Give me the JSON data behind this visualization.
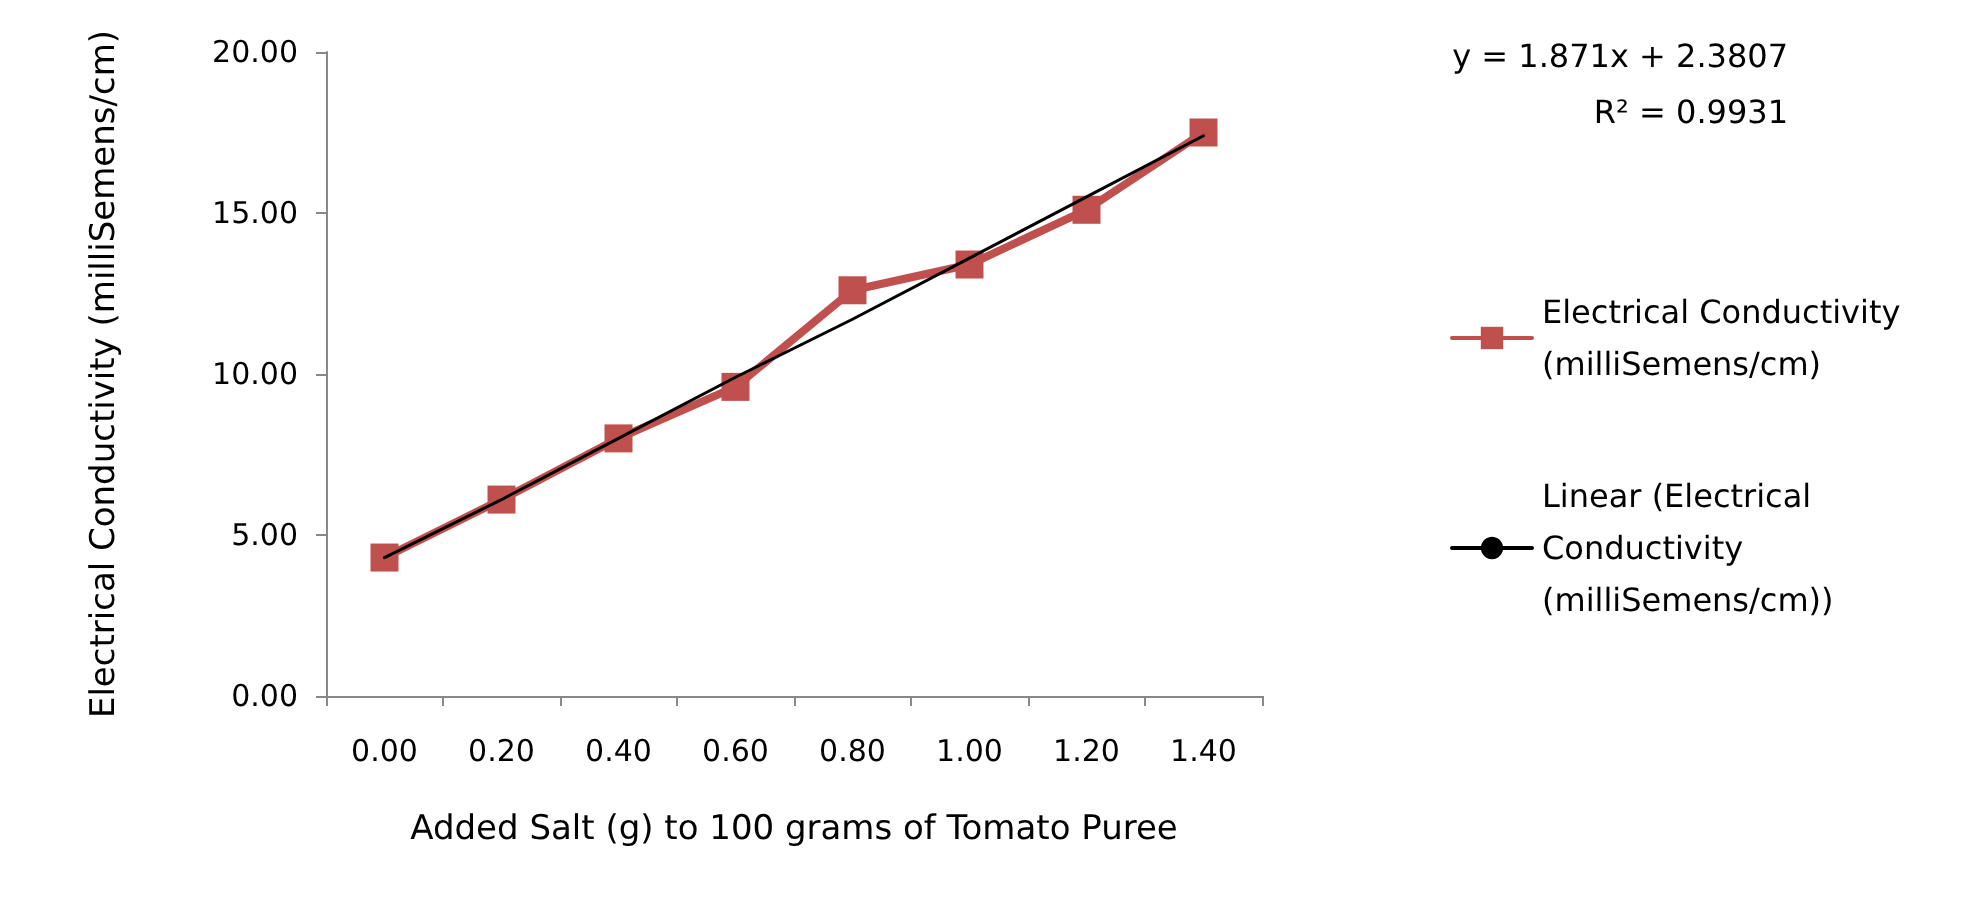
{
  "chart_data": {
    "type": "line",
    "xlabel": "Added Salt (g) to 100 grams of Tomato Puree",
    "ylabel": "Electrical Conductivity (milliSemens/cm)",
    "categories": [
      "0.00",
      "0.20",
      "0.40",
      "0.60",
      "0.80",
      "1.00",
      "1.20",
      "1.40"
    ],
    "series": [
      {
        "name": "Electrical Conductivity (milliSemens/cm)",
        "color": "#c0504d",
        "marker": "square",
        "values": [
          4.3,
          6.1,
          8.0,
          9.6,
          12.6,
          13.4,
          15.1,
          17.5
        ]
      },
      {
        "name": "Linear (Electrical Conductivity (milliSemens/cm))",
        "color": "#000000",
        "marker": "none",
        "values": [
          4.3,
          6.1,
          8.0,
          9.9,
          11.7,
          13.6,
          15.5,
          17.4
        ]
      }
    ],
    "ylim": [
      0,
      20
    ],
    "yticks": [
      {
        "value": 0,
        "label": "0.00"
      },
      {
        "value": 5,
        "label": "5.00"
      },
      {
        "value": 10,
        "label": "10.00"
      },
      {
        "value": 15,
        "label": "15.00"
      },
      {
        "value": 20,
        "label": "20.00"
      }
    ],
    "annotations": [
      "y = 1.871x + 2.3807",
      "R² = 0.9931"
    ],
    "grid": false,
    "legend": "right"
  }
}
